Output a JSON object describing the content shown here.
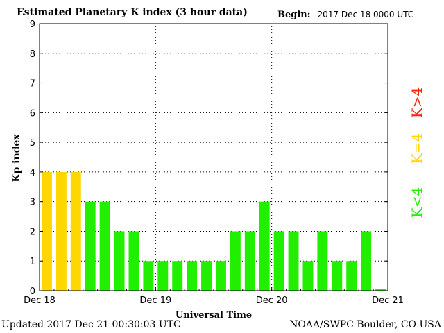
{
  "chart_data": {
    "type": "bar",
    "title": "Estimated Planetary K index (3 hour data)",
    "begin_label": "Begin:",
    "begin_value": "2017 Dec 18 0000 UTC",
    "ylabel": "Kp index",
    "xlabel": "Universal Time",
    "ylim": [
      0,
      9
    ],
    "yticks": [
      "0",
      "1",
      "2",
      "3",
      "4",
      "5",
      "6",
      "7",
      "8",
      "9"
    ],
    "xticks": [
      "Dec 18",
      "Dec 19",
      "Dec 20",
      "Dec 21"
    ],
    "values": [
      4,
      4,
      4,
      3,
      3,
      2,
      2,
      1,
      1,
      1,
      1,
      1,
      1,
      2,
      2,
      3,
      2,
      2,
      1,
      2,
      1,
      1,
      2,
      0.07
    ],
    "grid": true,
    "legend": [
      {
        "label": "K>4",
        "color": "#ff2200"
      },
      {
        "label": "K=4",
        "color": "#ffd700"
      },
      {
        "label": "K<4",
        "color": "#22ee00"
      }
    ],
    "colors": {
      "below4": "#22ee00",
      "equal4": "#ffd700",
      "above4": "#ff2200"
    }
  },
  "footer": {
    "updated": "Updated 2017 Dec 21 00:30:03 UTC",
    "source": "NOAA/SWPC Boulder, CO USA"
  }
}
